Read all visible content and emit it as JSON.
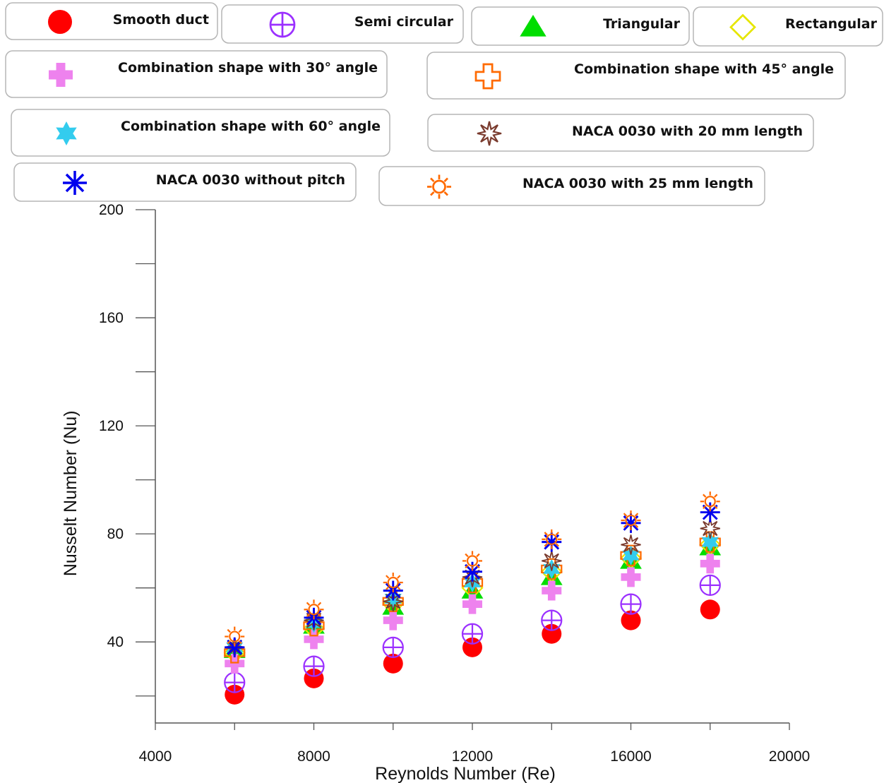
{
  "chart_data": {
    "type": "scatter",
    "xlabel": "Reynolds Number (Re)",
    "ylabel": "Nusselt Number (Nu)",
    "xlim": [
      4000,
      20000
    ],
    "ylim": [
      10,
      200
    ],
    "x_ticks": [
      4000,
      8000,
      12000,
      16000,
      20000
    ],
    "y_ticks": [
      40,
      80,
      120,
      160,
      200
    ],
    "grid": false,
    "legend_position": "top",
    "x": [
      6000,
      8000,
      10000,
      12000,
      14000,
      16000,
      18000
    ],
    "series": [
      {
        "name": "Smooth duct",
        "marker": "filled-circle",
        "color": "#ff0000",
        "values": [
          20.5,
          26.5,
          32,
          38,
          43,
          48,
          52
        ]
      },
      {
        "name": "Semi circular",
        "marker": "circle-plus",
        "color": "#9b30ff",
        "values": [
          25,
          31,
          38,
          43,
          48,
          54,
          61
        ]
      },
      {
        "name": "Triangular",
        "marker": "filled-triangle",
        "color": "#00dd00",
        "values": [
          37,
          46,
          53,
          59,
          64,
          70,
          75
        ]
      },
      {
        "name": "Rectangular",
        "marker": "diamond",
        "color": "#e6e600",
        "values": [
          36,
          45,
          54,
          60,
          66,
          71,
          76
        ]
      },
      {
        "name": "Combination shape with 30° angle",
        "marker": "filled-cross",
        "color": "#ee82ee",
        "values": [
          32,
          41,
          48,
          54,
          59,
          64,
          69
        ]
      },
      {
        "name": "Combination shape with 45° angle",
        "marker": "cross",
        "color": "#ff6a00",
        "values": [
          36,
          46,
          55,
          62,
          67,
          72,
          77
        ]
      },
      {
        "name": "Combination shape with 60° angle",
        "marker": "star",
        "color": "#33ccee",
        "values": [
          38,
          47,
          56,
          62,
          67,
          72,
          77
        ]
      },
      {
        "name": "NACA 0030 with 20 mm length",
        "marker": "asterisk-star",
        "color": "#7a3b2e",
        "values": [
          38,
          48,
          55,
          64,
          70,
          76,
          82
        ]
      },
      {
        "name": "NACA 0030 without pitch",
        "marker": "asterisk",
        "color": "#0000ee",
        "values": [
          38,
          49,
          59,
          66,
          77,
          84,
          88
        ]
      },
      {
        "name": "NACA 0030 with 25 mm length",
        "marker": "sun",
        "color": "#ff6a00",
        "values": [
          42,
          52,
          62,
          70,
          78,
          85,
          92
        ]
      }
    ]
  }
}
